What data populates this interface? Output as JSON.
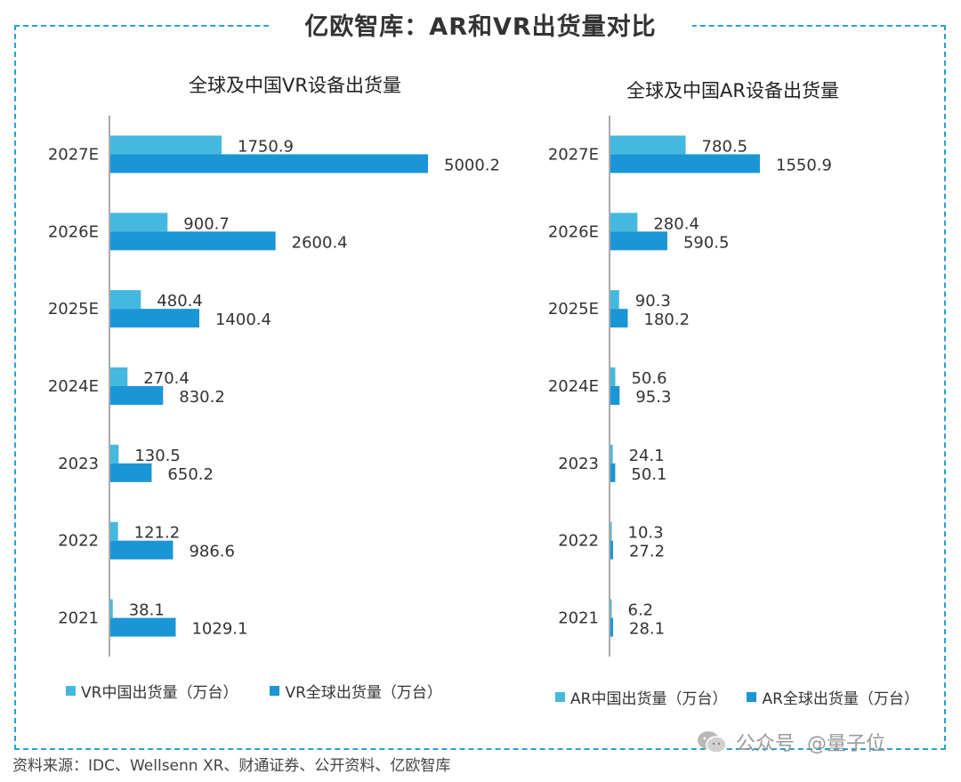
{
  "title": "亿欧智库：AR和VR出货量对比",
  "source": "资料来源：IDC、Wellsenn XR、财通证券、公开资料、亿欧智库",
  "watermark": {
    "platform_label": "公众号",
    "handle": "@量子位",
    "icon": "wechat-icon"
  },
  "colors": {
    "light": "#45b8e0",
    "dark": "#1a96d6",
    "border": "#2a9fd6"
  },
  "chart_data": [
    {
      "type": "bar",
      "orientation": "horizontal",
      "title": "全球及中国VR设备出货量",
      "categories": [
        "2027E",
        "2026E",
        "2025E",
        "2024E",
        "2023",
        "2022",
        "2021"
      ],
      "series": [
        {
          "name": "VR中国出货量（万台）",
          "color": "#45b8e0",
          "values": [
            1750.9,
            900.7,
            480.4,
            270.4,
            130.5,
            121.2,
            38.1
          ]
        },
        {
          "name": "VR全球出货量（万台）",
          "color": "#1a96d6",
          "values": [
            5000.2,
            2600.4,
            1400.4,
            830.2,
            650.2,
            986.6,
            1029.1
          ]
        }
      ],
      "xlim": [
        0,
        5000.2
      ],
      "grid": false,
      "legend_position": "bottom"
    },
    {
      "type": "bar",
      "orientation": "horizontal",
      "title": "全球及中国AR设备出货量",
      "categories": [
        "2027E",
        "2026E",
        "2025E",
        "2024E",
        "2023",
        "2022",
        "2021"
      ],
      "series": [
        {
          "name": "AR中国出货量（万台）",
          "color": "#45b8e0",
          "values": [
            780.5,
            280.4,
            90.3,
            50.6,
            24.1,
            10.3,
            6.2
          ]
        },
        {
          "name": "AR全球出货量（万台）",
          "color": "#1a96d6",
          "values": [
            1550.9,
            590.5,
            180.2,
            95.3,
            50.1,
            27.2,
            28.1
          ]
        }
      ],
      "xlim": [
        0,
        1550.9
      ],
      "grid": false,
      "legend_position": "bottom"
    }
  ]
}
